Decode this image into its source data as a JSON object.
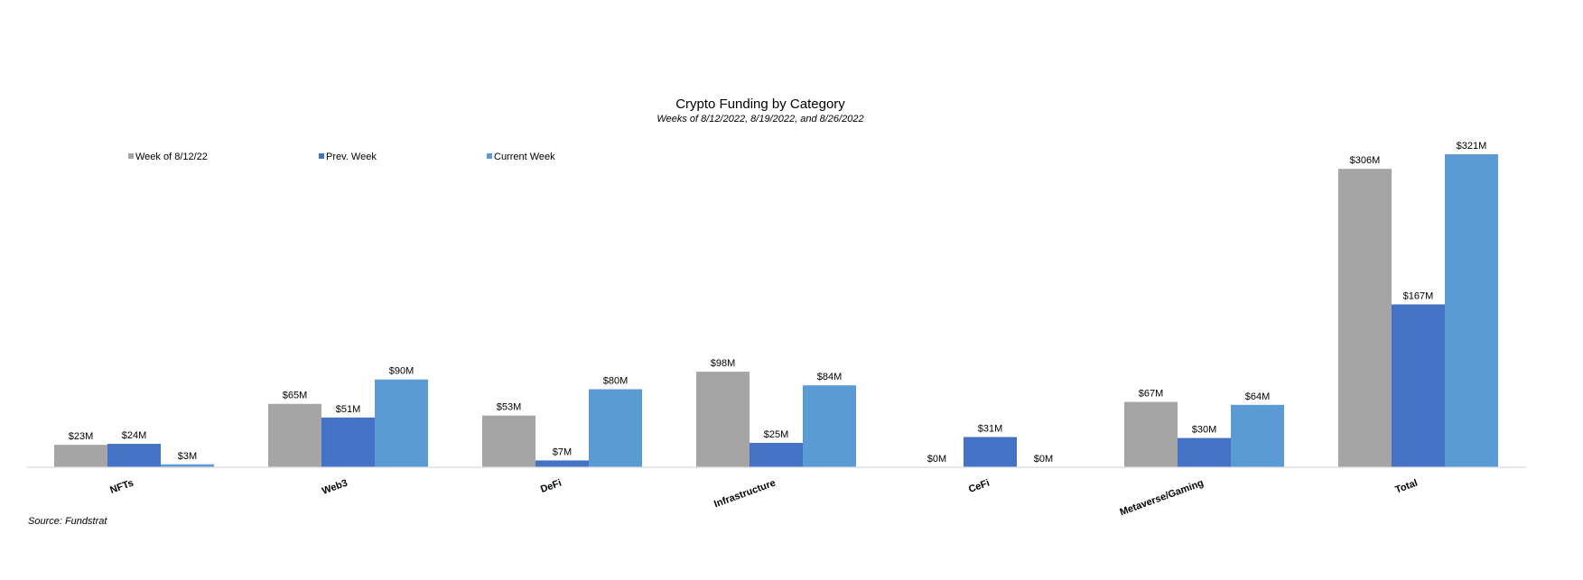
{
  "chart_data": {
    "type": "bar",
    "title": "Crypto Funding by Category",
    "subtitle": "Weeks of 8/12/2022, 8/19/2022, and 8/26/2022",
    "categories": [
      "NFTs",
      "Web3",
      "DeFi",
      "Infrastructure",
      "CeFi",
      "Metaverse/Gaming",
      "Total"
    ],
    "series": [
      {
        "name": "Week of 8/12/22",
        "color": "#a5a5a5",
        "values": [
          23,
          65,
          53,
          98,
          0,
          67,
          306
        ],
        "labels": [
          "$23M",
          "$65M",
          "$53M",
          "$98M",
          "$0M",
          "$67M",
          "$306M"
        ]
      },
      {
        "name": "Prev. Week",
        "color": "#4472c4",
        "values": [
          24,
          51,
          7,
          25,
          31,
          30,
          167
        ],
        "labels": [
          "$24M",
          "$51M",
          "$7M",
          "$25M",
          "$31M",
          "$30M",
          "$167M"
        ]
      },
      {
        "name": "Current Week",
        "color": "#5b9bd5",
        "values": [
          3,
          90,
          80,
          84,
          0,
          64,
          321
        ],
        "labels": [
          "$3M",
          "$90M",
          "$80M",
          "$84M",
          "$0M",
          "$64M",
          "$321M"
        ]
      }
    ],
    "ylim": [
      0,
      321
    ],
    "grid": false,
    "legend_position": "top-left",
    "axis_color": "#d9d9d9",
    "source": "Source: Fundstrat"
  }
}
